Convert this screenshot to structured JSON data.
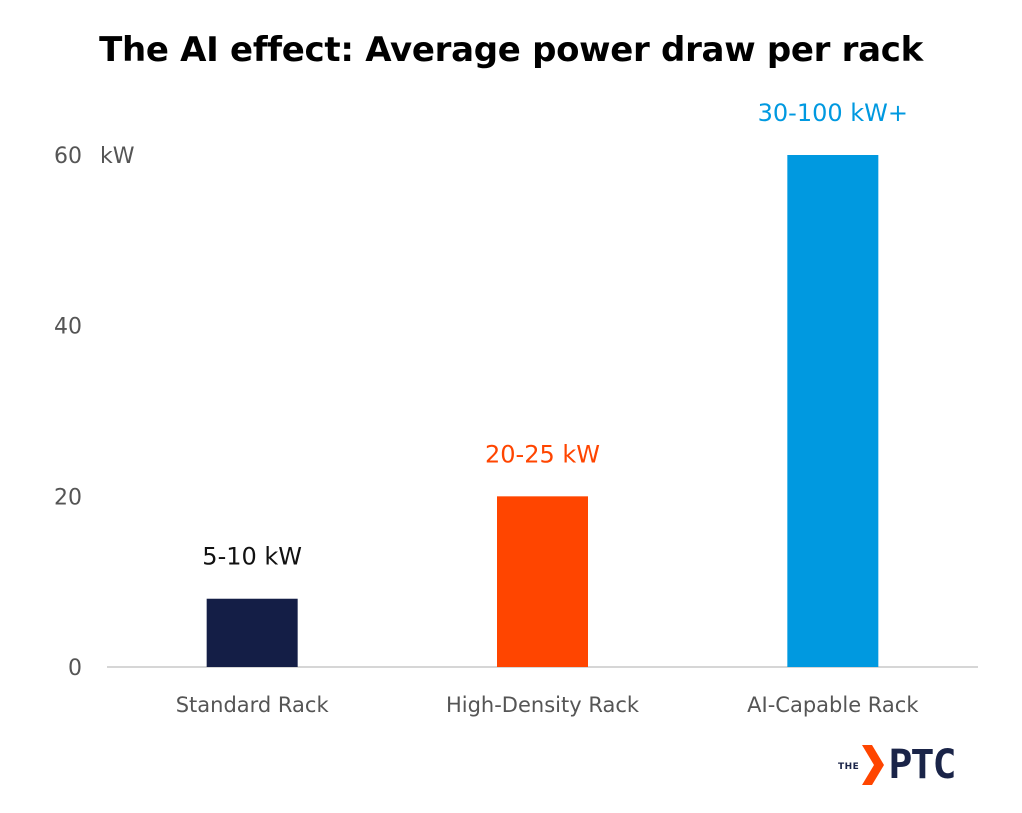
{
  "chart_data": {
    "type": "bar",
    "title": "The AI effect: Average power draw per rack",
    "unit_label": "kW",
    "categories": [
      "Standard Rack",
      "High-Density Rack",
      "AI-Capable Rack"
    ],
    "values": [
      8,
      20,
      60
    ],
    "data_labels": [
      "5-10 kW",
      "20-25 kW",
      "30-100 kW+"
    ],
    "colors": [
      "#141e46",
      "#ff4500",
      "#0099e0"
    ],
    "label_colors": [
      "#111111",
      "#ff4500",
      "#0099e0"
    ],
    "yticks": [
      0,
      20,
      40,
      60
    ],
    "ylim": [
      0,
      60
    ],
    "grid": false,
    "legend": "none"
  },
  "logo": {
    "the": "THE",
    "name": "PTC"
  }
}
